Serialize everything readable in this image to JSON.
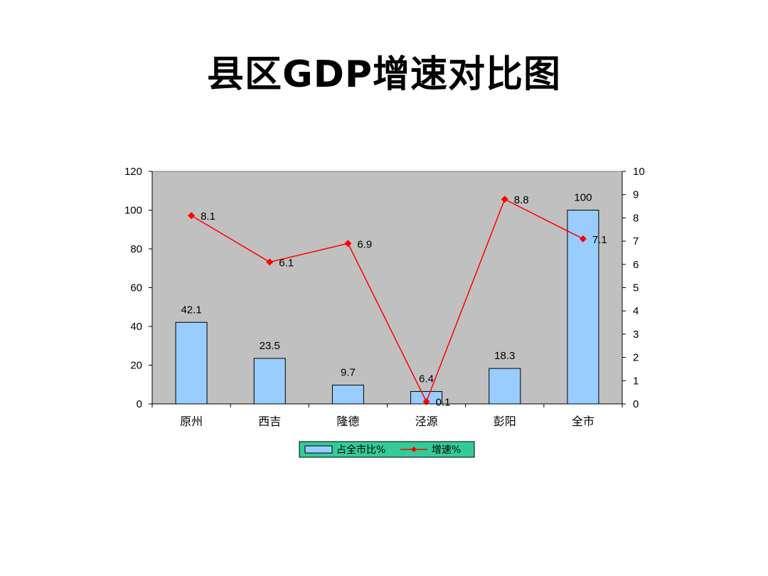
{
  "slide": {
    "title": "县区GDP增速对比图"
  },
  "chart_data": {
    "type": "bar",
    "categories": [
      "原州",
      "西吉",
      "隆德",
      "泾源",
      "彭阳",
      "全市"
    ],
    "series": [
      {
        "name": "占全市比%",
        "kind": "bar",
        "axis": "left",
        "values": [
          42.1,
          23.5,
          9.7,
          6.4,
          18.3,
          100
        ],
        "labels": [
          "42.1",
          "23.5",
          "9.7",
          "6.4",
          "18.3",
          "100"
        ],
        "color": "#99ccff"
      },
      {
        "name": "增速%",
        "kind": "line",
        "axis": "right",
        "values": [
          8.1,
          6.1,
          6.9,
          0.1,
          8.8,
          7.1
        ],
        "labels": [
          "8.1",
          "6.1",
          "6.9",
          "0.1",
          "8.8",
          "7.1"
        ],
        "color": "#ff0000"
      }
    ],
    "y_left": {
      "min": 0,
      "max": 120,
      "step": 20
    },
    "y_right": {
      "min": 0,
      "max": 10,
      "step": 1
    },
    "plot_background": "#c0c0c0",
    "legend": {
      "position": "bottom",
      "background": "#33cc99"
    },
    "grid": false
  }
}
